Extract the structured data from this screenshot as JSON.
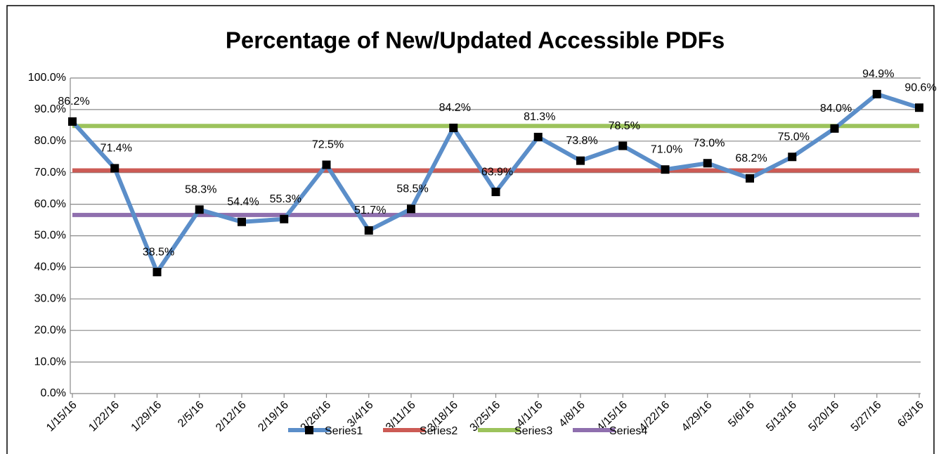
{
  "chart_data": {
    "type": "line",
    "title": "Percentage of New/Updated Accessible PDFs",
    "categories": [
      "1/15/16",
      "1/22/16",
      "1/29/16",
      "2/5/16",
      "2/12/16",
      "2/19/16",
      "2/26/16",
      "3/4/16",
      "3/11/16",
      "3/18/16",
      "3/25/16",
      "4/1/16",
      "4/8/16",
      "4/15/16",
      "4/22/16",
      "4/29/16",
      "5/6/16",
      "5/13/16",
      "5/20/16",
      "5/27/16",
      "6/3/16"
    ],
    "series": [
      {
        "name": "Series1",
        "color": "#5b8ec9",
        "marker": "square",
        "values": [
          86.2,
          71.4,
          38.5,
          58.3,
          54.4,
          55.3,
          72.5,
          51.7,
          58.5,
          84.2,
          63.9,
          81.3,
          73.8,
          78.5,
          71.0,
          73.0,
          68.2,
          75.0,
          84.0,
          94.9,
          90.6
        ],
        "value_labels": [
          "86.2%",
          "71.4%",
          "38.5%",
          "58.3%",
          "54.4%",
          "55.3%",
          "72.5%",
          "51.7%",
          "58.5%",
          "84.2%",
          "63.9%",
          "81.3%",
          "73.8%",
          "78.5%",
          "71.0%",
          "73.0%",
          "68.2%",
          "75.0%",
          "84.0%",
          "94.9%",
          "90.6%"
        ]
      },
      {
        "name": "Series2",
        "color": "#cc5b55",
        "values": [
          70.7,
          70.7,
          70.7,
          70.7,
          70.7,
          70.7,
          70.7,
          70.7,
          70.7,
          70.7,
          70.7,
          70.7,
          70.7,
          70.7,
          70.7,
          70.7,
          70.7,
          70.7,
          70.7,
          70.7,
          70.7
        ]
      },
      {
        "name": "Series3",
        "color": "#9cc35c",
        "values": [
          84.8,
          84.8,
          84.8,
          84.8,
          84.8,
          84.8,
          84.8,
          84.8,
          84.8,
          84.8,
          84.8,
          84.8,
          84.8,
          84.8,
          84.8,
          84.8,
          84.8,
          84.8,
          84.8,
          84.8,
          84.8
        ]
      },
      {
        "name": "Series4",
        "color": "#8f6fae",
        "values": [
          56.6,
          56.6,
          56.6,
          56.6,
          56.6,
          56.6,
          56.6,
          56.6,
          56.6,
          56.6,
          56.6,
          56.6,
          56.6,
          56.6,
          56.6,
          56.6,
          56.6,
          56.6,
          56.6,
          56.6,
          56.6
        ]
      }
    ],
    "ylim": [
      0,
      100
    ],
    "yticks": [
      {
        "value": 0,
        "label": "0.0%"
      },
      {
        "value": 10,
        "label": "10.0%"
      },
      {
        "value": 20,
        "label": "20.0%"
      },
      {
        "value": 30,
        "label": "30.0%"
      },
      {
        "value": 40,
        "label": "40.0%"
      },
      {
        "value": 50,
        "label": "50.0%"
      },
      {
        "value": 60,
        "label": "60.0%"
      },
      {
        "value": 70,
        "label": "70.0%"
      },
      {
        "value": 80,
        "label": "80.0%"
      },
      {
        "value": 90,
        "label": "90.0%"
      },
      {
        "value": 100,
        "label": "100.0%"
      }
    ],
    "grid": true,
    "legend": "bottom"
  }
}
